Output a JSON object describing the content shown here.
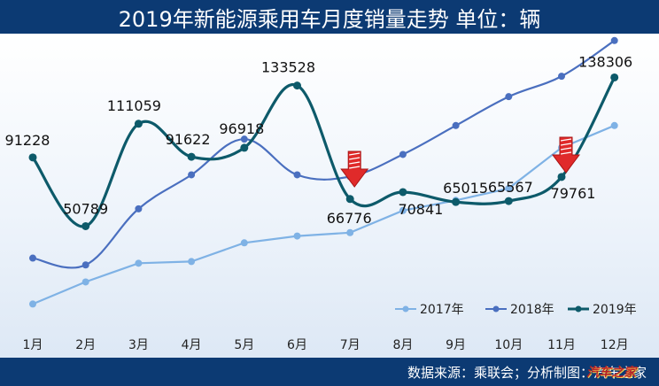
{
  "title": "2019年新能源乘用车月度销量走势  单位：辆",
  "footer": "数据来源：乘联会；分析制图：汽车之家",
  "watermark": "汽车之家",
  "chart_data": {
    "type": "line",
    "categories": [
      "1月",
      "2月",
      "3月",
      "4月",
      "5月",
      "6月",
      "7月",
      "8月",
      "9月",
      "10月",
      "11月",
      "12月"
    ],
    "ylim": [
      0,
      150000
    ],
    "grid": false,
    "legend_position": "bottom-right",
    "series": [
      {
        "name": "2017年",
        "color": "#7fb2e5",
        "smooth": false,
        "labels": false,
        "values": [
          5000,
          18000,
          29000,
          30000,
          41000,
          45000,
          47000,
          60000,
          66000,
          73000,
          97000,
          110000
        ]
      },
      {
        "name": "2018年",
        "color": "#4a6fbf",
        "smooth": true,
        "labels": false,
        "values": [
          32000,
          28000,
          61000,
          81000,
          102000,
          81000,
          80000,
          93000,
          110000,
          127000,
          139000,
          160000
        ]
      },
      {
        "name": "2019年",
        "color": "#0d5a6a",
        "smooth": true,
        "labels": true,
        "values": [
          91228,
          50789,
          111059,
          91622,
          96918,
          133528,
          66776,
          70841,
          65015,
          65567,
          79761,
          138306
        ]
      }
    ],
    "annotations": [
      {
        "type": "down-arrow",
        "category": "7月",
        "color": "#e02a2a"
      },
      {
        "type": "down-arrow",
        "category": "11月",
        "color": "#e02a2a"
      }
    ]
  }
}
